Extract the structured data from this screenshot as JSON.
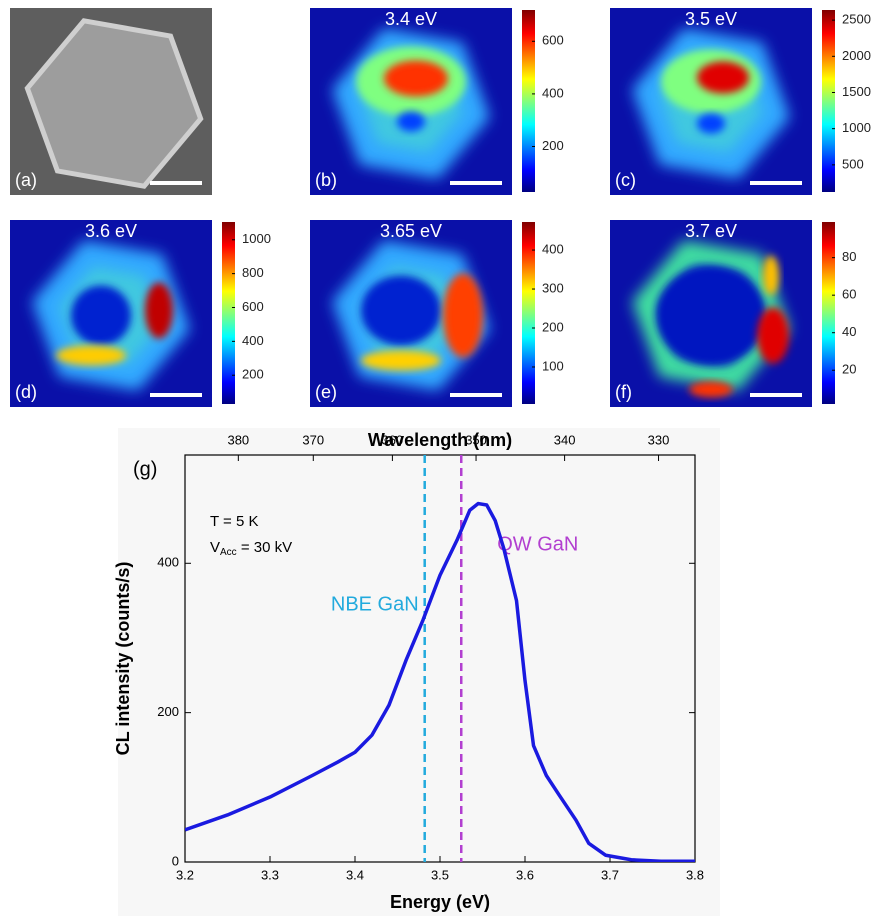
{
  "panels": [
    {
      "label": "(a)"
    },
    {
      "label": "(b)",
      "energy": "3.4 eV",
      "clim": [
        27,
        719
      ],
      "cticks": [
        200,
        400,
        600
      ]
    },
    {
      "label": "(c)",
      "energy": "3.5 eV",
      "clim": [
        125,
        2640
      ],
      "cticks": [
        500,
        1000,
        1500,
        2000,
        2500
      ]
    },
    {
      "label": "(d)",
      "energy": "3.6 eV",
      "clim": [
        30,
        1105
      ],
      "cticks": [
        200,
        400,
        600,
        800,
        1000
      ]
    },
    {
      "label": "(e)",
      "energy": "3.65 eV",
      "clim": [
        5,
        472
      ],
      "cticks": [
        100,
        200,
        300,
        400
      ]
    },
    {
      "label": "(f)",
      "energy": "3.7 eV",
      "clim": [
        2,
        99
      ],
      "cticks": [
        20,
        40,
        60,
        80
      ]
    }
  ],
  "chart_data": {
    "type": "line",
    "label": "(g)",
    "xlabel": "Energy (eV)",
    "ylabel": "CL intensity (counts/s)",
    "x2label": "Wavelength (nm)",
    "xlim": [
      3.2,
      3.8
    ],
    "xticks": [
      3.2,
      3.3,
      3.4,
      3.5,
      3.6,
      3.7,
      3.8
    ],
    "ylim": [
      0,
      545
    ],
    "yticks": [
      0,
      200,
      400
    ],
    "x2ticks": [
      380,
      370,
      360,
      350,
      340,
      330
    ],
    "x": [
      3.2,
      3.25,
      3.3,
      3.35,
      3.38,
      3.4,
      3.42,
      3.44,
      3.46,
      3.48,
      3.5,
      3.52,
      3.535,
      3.545,
      3.555,
      3.565,
      3.575,
      3.59,
      3.6,
      3.61,
      3.625,
      3.64,
      3.66,
      3.675,
      3.695,
      3.725,
      3.76,
      3.8
    ],
    "series": [
      {
        "color": "#1a1ae0",
        "values": [
          43,
          63,
          87,
          116,
          134,
          147,
          170,
          210,
          270,
          324,
          384,
          431,
          471,
          480,
          478,
          457,
          420,
          350,
          243,
          156,
          116,
          90,
          56,
          25,
          9,
          3,
          1,
          1
        ]
      }
    ],
    "vlines": [
      {
        "text": "NBE GaN",
        "x": 3.482,
        "color": "#22aadd"
      },
      {
        "text": "QW GaN",
        "x": 3.525,
        "color": "#b23fd0"
      }
    ],
    "notes": {
      "line1": "T =  5 K",
      "main": "V",
      "sub": "Acc",
      "rest": " = 30 kV"
    }
  }
}
